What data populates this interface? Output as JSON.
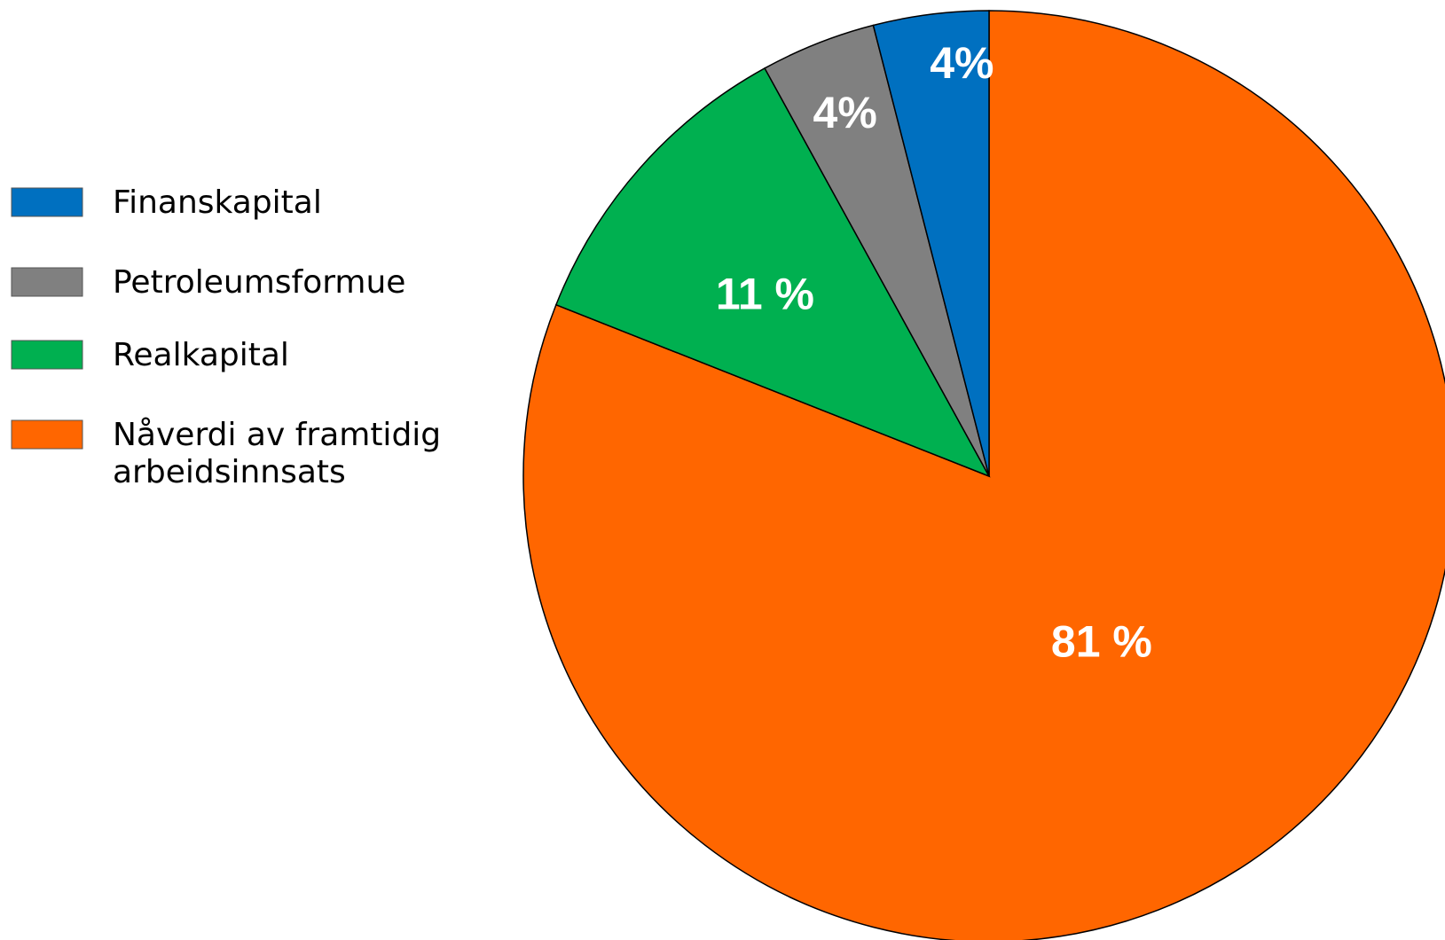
{
  "chart_data": {
    "type": "pie",
    "title": "",
    "start": "12 o'clock",
    "direction": "clockwise",
    "legend_position": "left",
    "slices": [
      {
        "name": "Nåverdi av framtidig arbeidsinnsats",
        "legend_lines": [
          "Nåverdi av framtidig",
          "arbeidsinnsats"
        ],
        "value": 81,
        "label": "81 %",
        "color": "#ff6600"
      },
      {
        "name": "Realkapital",
        "legend_lines": [
          "Realkapital"
        ],
        "value": 11,
        "label": "11 %",
        "color": "#00b050"
      },
      {
        "name": "Petroleumsformue",
        "legend_lines": [
          "Petroleumsformue"
        ],
        "value": 4,
        "label": "4%",
        "color": "#808080"
      },
      {
        "name": "Finanskapital",
        "legend_lines": [
          "Finanskapital"
        ],
        "value": 4,
        "label": "4%",
        "color": "#0070c0"
      }
    ],
    "legend_order": [
      "Finanskapital",
      "Petroleumsformue",
      "Realkapital",
      "Nåverdi av framtidig arbeidsinnsats"
    ]
  }
}
